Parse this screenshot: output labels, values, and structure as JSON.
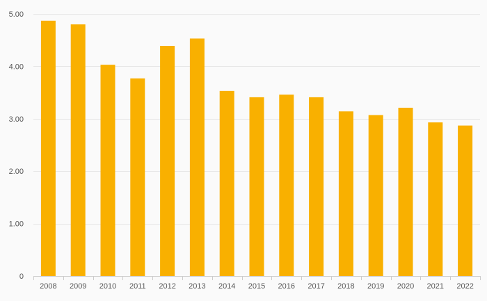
{
  "chart_data": {
    "type": "bar",
    "title": "",
    "xlabel": "",
    "ylabel": "",
    "categories": [
      "2008",
      "2009",
      "2010",
      "2011",
      "2012",
      "2013",
      "2014",
      "2015",
      "2016",
      "2017",
      "2018",
      "2019",
      "2020",
      "2021",
      "2022"
    ],
    "values": [
      4.87,
      4.8,
      4.03,
      3.77,
      4.39,
      4.53,
      3.53,
      3.41,
      3.46,
      3.41,
      3.14,
      3.07,
      3.21,
      2.93,
      2.87
    ],
    "ylim": [
      0,
      5
    ],
    "y_ticks": [
      0,
      1,
      2,
      3,
      4,
      5
    ],
    "y_tick_labels": [
      "0",
      "1.00",
      "2.00",
      "3.00",
      "4.00",
      "5.00"
    ],
    "grid": true,
    "bar_color": "#f9b000",
    "legend": "none"
  }
}
